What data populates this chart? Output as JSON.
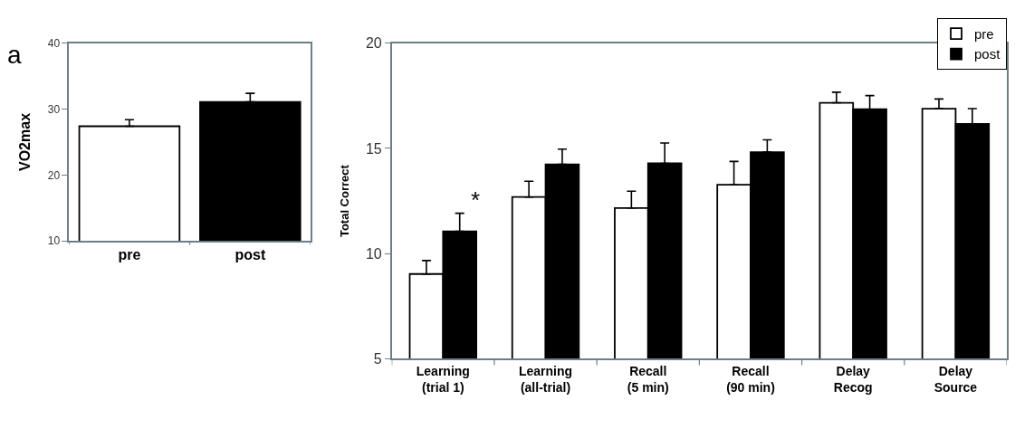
{
  "chart_data": [
    {
      "type": "bar",
      "ylabel": "VO2max",
      "categories": [
        "pre",
        "post"
      ],
      "values": [
        27.4,
        31.1
      ],
      "colors": [
        "#ffffff",
        "#000000"
      ],
      "errors": [
        [
          27.4,
          28.4
        ],
        [
          31.1,
          32.4
        ]
      ],
      "ylim": [
        10,
        40
      ],
      "yticks": [
        10,
        20,
        30,
        40
      ],
      "annotations": [
        "a"
      ]
    },
    {
      "type": "bar",
      "ylabel": "Total Correct",
      "categories": [
        "Learning\n(trial 1)",
        "Learning\n(all-trial)",
        "Recall\n(5 min)",
        "Recall\n(90 min)",
        "Delay\nRecog",
        "Delay\nSource"
      ],
      "series": [
        {
          "name": "pre",
          "color": "#ffffff",
          "values": [
            9.03,
            12.69,
            12.17,
            13.27,
            17.17,
            16.89
          ],
          "errors": [
            [
              9.03,
              9.67
            ],
            [
              12.69,
              13.44
            ],
            [
              12.17,
              12.97
            ],
            [
              13.27,
              14.38
            ],
            [
              17.17,
              17.67
            ],
            [
              16.89,
              17.35
            ]
          ]
        },
        {
          "name": "post",
          "color": "#000000",
          "values": [
            11.06,
            14.24,
            14.29,
            14.82,
            16.86,
            16.17
          ],
          "errors": [
            [
              11.06,
              11.92
            ],
            [
              14.24,
              14.97
            ],
            [
              14.29,
              15.26
            ],
            [
              14.82,
              15.41
            ],
            [
              16.86,
              17.51
            ],
            [
              16.17,
              16.89
            ]
          ]
        }
      ],
      "ylim": [
        5,
        20
      ],
      "yticks": [
        5,
        10,
        15,
        20
      ],
      "legend": "top right",
      "annotations": [
        "*"
      ]
    }
  ]
}
